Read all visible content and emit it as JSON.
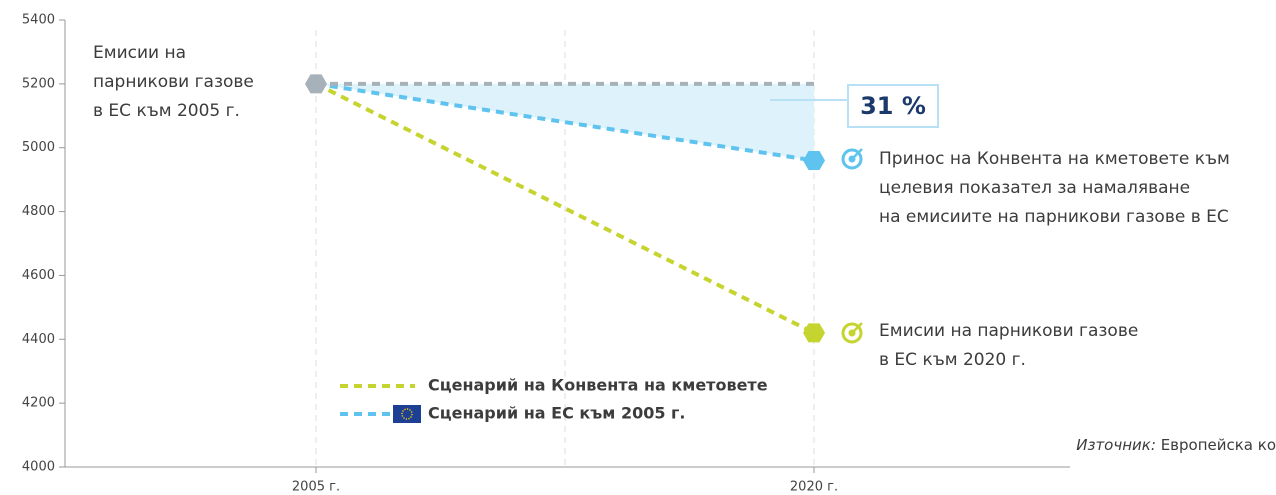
{
  "chart_data": {
    "type": "line",
    "categories": [
      "2005 г.",
      "2020 г."
    ],
    "series": [
      {
        "name": "Сценарий на Конвента на кметовете",
        "color": "#c5d42e",
        "values": [
          5200,
          4420
        ]
      },
      {
        "name": "Сценарий на ЕС към 2005 г.",
        "color": "#5fc3ef",
        "values": [
          5200,
          4960
        ]
      },
      {
        "color": "#a7b1ba",
        "values": [
          5200,
          5200
        ]
      }
    ],
    "ylim": [
      4000,
      5400
    ],
    "yticks": [
      4000,
      4200,
      4400,
      4600,
      4800,
      5000,
      5200,
      5400
    ],
    "grid": true,
    "annotations": {
      "start": [
        "Емисии на",
        "парникови газове",
        "в ЕС към 2005 г."
      ],
      "reduction": "31 %",
      "contribution": [
        "Принос на Конвента на кметовете към",
        "целевия показател за намаляване",
        "на емисиите на парникови газове в ЕС"
      ],
      "end": [
        "Емисии на парникови газове",
        "в ЕС към 2020 г."
      ],
      "source_label": "Източник:",
      "source_text": "Европейска ко"
    }
  }
}
